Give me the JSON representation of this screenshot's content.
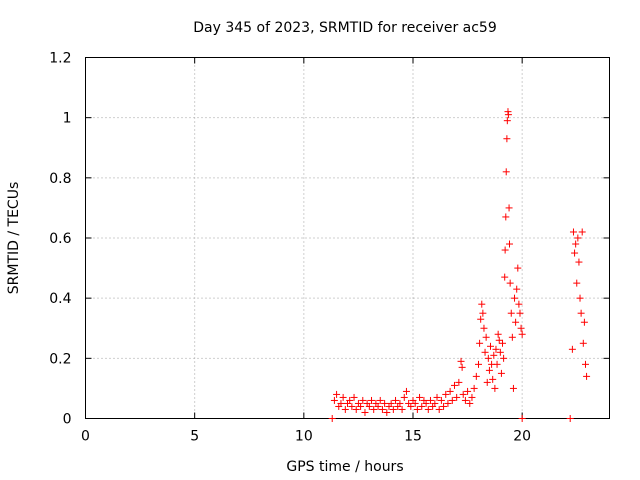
{
  "chart_data": {
    "type": "scatter",
    "title": "Day 345 of 2023, SRMTID for receiver ac59",
    "xlabel": "GPS time / hours",
    "ylabel": "SRMTID / TECUs",
    "xlim": [
      0,
      24
    ],
    "ylim": [
      0,
      1.2
    ],
    "xticks": [
      0,
      5,
      10,
      15,
      20
    ],
    "yticks": [
      0,
      0.2,
      0.4,
      0.6,
      0.8,
      1,
      1.2
    ],
    "xtick_labels": [
      "0",
      "5",
      "10",
      "15",
      "20"
    ],
    "ytick_labels": [
      "0",
      "0.2",
      "0.4",
      "0.6",
      "0.8",
      "1",
      "1.2"
    ],
    "grid": true,
    "marker": "+",
    "color": "#ff0000",
    "series": [
      {
        "name": "SRMTID",
        "points": [
          [
            11.3,
            0.0
          ],
          [
            22.2,
            0.0
          ],
          [
            20.0,
            0.0
          ],
          [
            11.4,
            0.06
          ],
          [
            11.5,
            0.08
          ],
          [
            11.6,
            0.04
          ],
          [
            11.7,
            0.05
          ],
          [
            11.8,
            0.07
          ],
          [
            11.9,
            0.03
          ],
          [
            12.0,
            0.05
          ],
          [
            12.1,
            0.06
          ],
          [
            12.2,
            0.04
          ],
          [
            12.3,
            0.07
          ],
          [
            12.4,
            0.03
          ],
          [
            12.5,
            0.05
          ],
          [
            12.6,
            0.04
          ],
          [
            12.7,
            0.06
          ],
          [
            12.8,
            0.02
          ],
          [
            12.9,
            0.05
          ],
          [
            13.0,
            0.04
          ],
          [
            13.1,
            0.06
          ],
          [
            13.2,
            0.03
          ],
          [
            13.3,
            0.05
          ],
          [
            13.4,
            0.04
          ],
          [
            13.5,
            0.06
          ],
          [
            13.6,
            0.03
          ],
          [
            13.7,
            0.05
          ],
          [
            13.8,
            0.02
          ],
          [
            13.9,
            0.04
          ],
          [
            14.0,
            0.05
          ],
          [
            14.1,
            0.03
          ],
          [
            14.2,
            0.06
          ],
          [
            14.3,
            0.04
          ],
          [
            14.4,
            0.05
          ],
          [
            14.5,
            0.03
          ],
          [
            14.6,
            0.07
          ],
          [
            14.7,
            0.09
          ],
          [
            14.8,
            0.05
          ],
          [
            14.9,
            0.04
          ],
          [
            15.0,
            0.06
          ],
          [
            15.1,
            0.05
          ],
          [
            15.2,
            0.03
          ],
          [
            15.3,
            0.07
          ],
          [
            15.4,
            0.04
          ],
          [
            15.5,
            0.06
          ],
          [
            15.6,
            0.05
          ],
          [
            15.7,
            0.03
          ],
          [
            15.8,
            0.06
          ],
          [
            15.9,
            0.04
          ],
          [
            16.0,
            0.05
          ],
          [
            16.1,
            0.07
          ],
          [
            16.2,
            0.03
          ],
          [
            16.3,
            0.06
          ],
          [
            16.4,
            0.04
          ],
          [
            16.5,
            0.08
          ],
          [
            16.6,
            0.05
          ],
          [
            16.7,
            0.09
          ],
          [
            16.8,
            0.06
          ],
          [
            16.9,
            0.11
          ],
          [
            17.0,
            0.07
          ],
          [
            17.1,
            0.12
          ],
          [
            17.2,
            0.19
          ],
          [
            17.25,
            0.17
          ],
          [
            17.3,
            0.08
          ],
          [
            17.4,
            0.06
          ],
          [
            17.5,
            0.09
          ],
          [
            17.6,
            0.05
          ],
          [
            17.7,
            0.07
          ],
          [
            17.8,
            0.1
          ],
          [
            17.9,
            0.14
          ],
          [
            18.0,
            0.18
          ],
          [
            18.05,
            0.25
          ],
          [
            18.1,
            0.33
          ],
          [
            18.15,
            0.38
          ],
          [
            18.2,
            0.35
          ],
          [
            18.25,
            0.3
          ],
          [
            18.3,
            0.22
          ],
          [
            18.35,
            0.27
          ],
          [
            18.4,
            0.12
          ],
          [
            18.45,
            0.2
          ],
          [
            18.5,
            0.16
          ],
          [
            18.55,
            0.24
          ],
          [
            18.6,
            0.18
          ],
          [
            18.65,
            0.13
          ],
          [
            18.7,
            0.21
          ],
          [
            18.75,
            0.1
          ],
          [
            18.8,
            0.23
          ],
          [
            18.85,
            0.18
          ],
          [
            18.9,
            0.28
          ],
          [
            18.95,
            0.26
          ],
          [
            19.0,
            0.22
          ],
          [
            19.05,
            0.15
          ],
          [
            19.1,
            0.25
          ],
          [
            19.15,
            0.2
          ],
          [
            19.2,
            0.47
          ],
          [
            19.22,
            0.56
          ],
          [
            19.25,
            0.67
          ],
          [
            19.27,
            0.82
          ],
          [
            19.3,
            0.93
          ],
          [
            19.32,
            0.99
          ],
          [
            19.35,
            1.02
          ],
          [
            19.37,
            1.01
          ],
          [
            19.4,
            0.7
          ],
          [
            19.42,
            0.58
          ],
          [
            19.45,
            0.45
          ],
          [
            19.5,
            0.35
          ],
          [
            19.55,
            0.27
          ],
          [
            19.6,
            0.1
          ],
          [
            19.65,
            0.4
          ],
          [
            19.7,
            0.32
          ],
          [
            19.75,
            0.43
          ],
          [
            19.8,
            0.5
          ],
          [
            19.85,
            0.38
          ],
          [
            19.9,
            0.35
          ],
          [
            19.95,
            0.3
          ],
          [
            20.0,
            0.28
          ],
          [
            22.3,
            0.23
          ],
          [
            22.35,
            0.62
          ],
          [
            22.4,
            0.55
          ],
          [
            22.45,
            0.58
          ],
          [
            22.5,
            0.45
          ],
          [
            22.55,
            0.6
          ],
          [
            22.6,
            0.52
          ],
          [
            22.65,
            0.4
          ],
          [
            22.7,
            0.35
          ],
          [
            22.75,
            0.62
          ],
          [
            22.8,
            0.25
          ],
          [
            22.85,
            0.32
          ],
          [
            22.9,
            0.18
          ],
          [
            22.95,
            0.14
          ]
        ]
      }
    ]
  }
}
